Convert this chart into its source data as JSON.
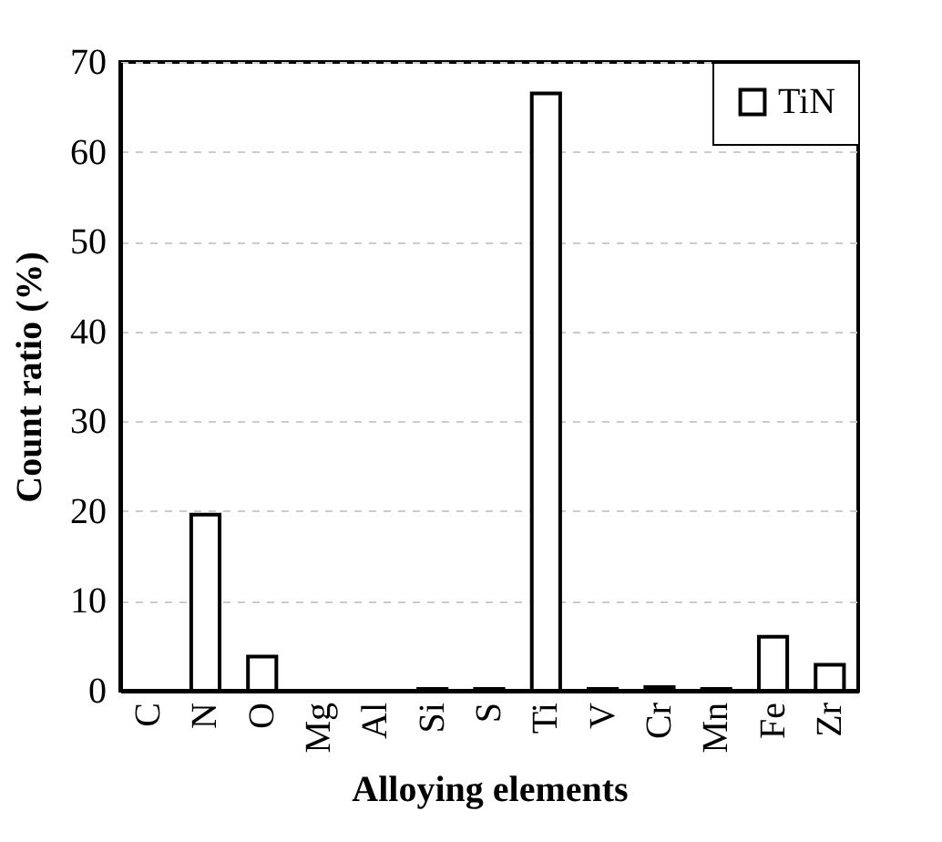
{
  "chart_data": {
    "type": "bar",
    "xlabel": "Alloying elements",
    "ylabel": "Count ratio (%)",
    "categories": [
      "C",
      "N",
      "O",
      "Mg",
      "Al",
      "Si",
      "S",
      "Ti",
      "V",
      "Cr",
      "Mn",
      "Fe",
      "Zr"
    ],
    "series": [
      {
        "name": "TiN",
        "color": "#ffffff",
        "values": [
          0,
          19.6,
          3.8,
          0,
          0,
          0.2,
          0.2,
          66.5,
          0.2,
          0.4,
          0.2,
          6.0,
          2.9
        ]
      }
    ],
    "ylim": [
      0,
      70
    ],
    "yticks": [
      0,
      10,
      20,
      30,
      40,
      50,
      60,
      70
    ],
    "grid": "y",
    "legend": "top right"
  }
}
